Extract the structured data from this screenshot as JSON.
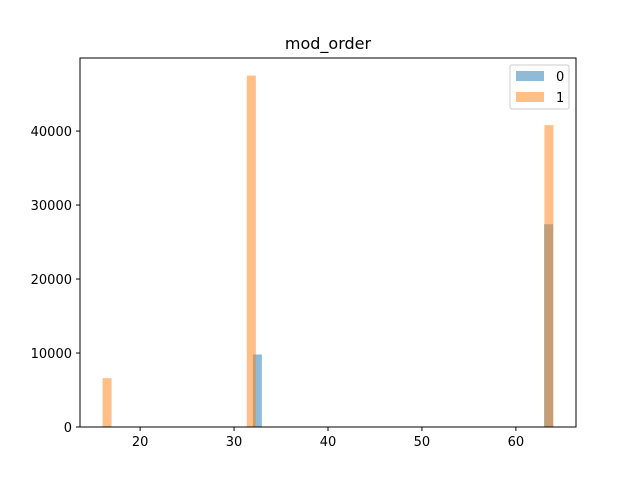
{
  "chart_data": {
    "type": "bar",
    "title": "mod_order",
    "xlabel": "",
    "ylabel": "",
    "xlim": [
      13.6,
      66.4
    ],
    "ylim": [
      0,
      49875
    ],
    "xticks": [
      20,
      30,
      40,
      50,
      60
    ],
    "yticks": [
      0,
      10000,
      20000,
      30000,
      40000
    ],
    "bin_width": 0.96,
    "legend_position": "upper right",
    "grid": false,
    "series": [
      {
        "name": "0",
        "color": "#1f77b4",
        "opacity": 0.5,
        "bars": [
          {
            "x0": 32.0,
            "value": 9800
          },
          {
            "x0": 63.0,
            "value": 27400
          }
        ]
      },
      {
        "name": "1",
        "color": "#ff7f0e",
        "opacity": 0.5,
        "bars": [
          {
            "x0": 16.0,
            "value": 6600
          },
          {
            "x0": 31.36,
            "value": 47500
          },
          {
            "x0": 63.04,
            "value": 40800
          }
        ]
      }
    ]
  }
}
